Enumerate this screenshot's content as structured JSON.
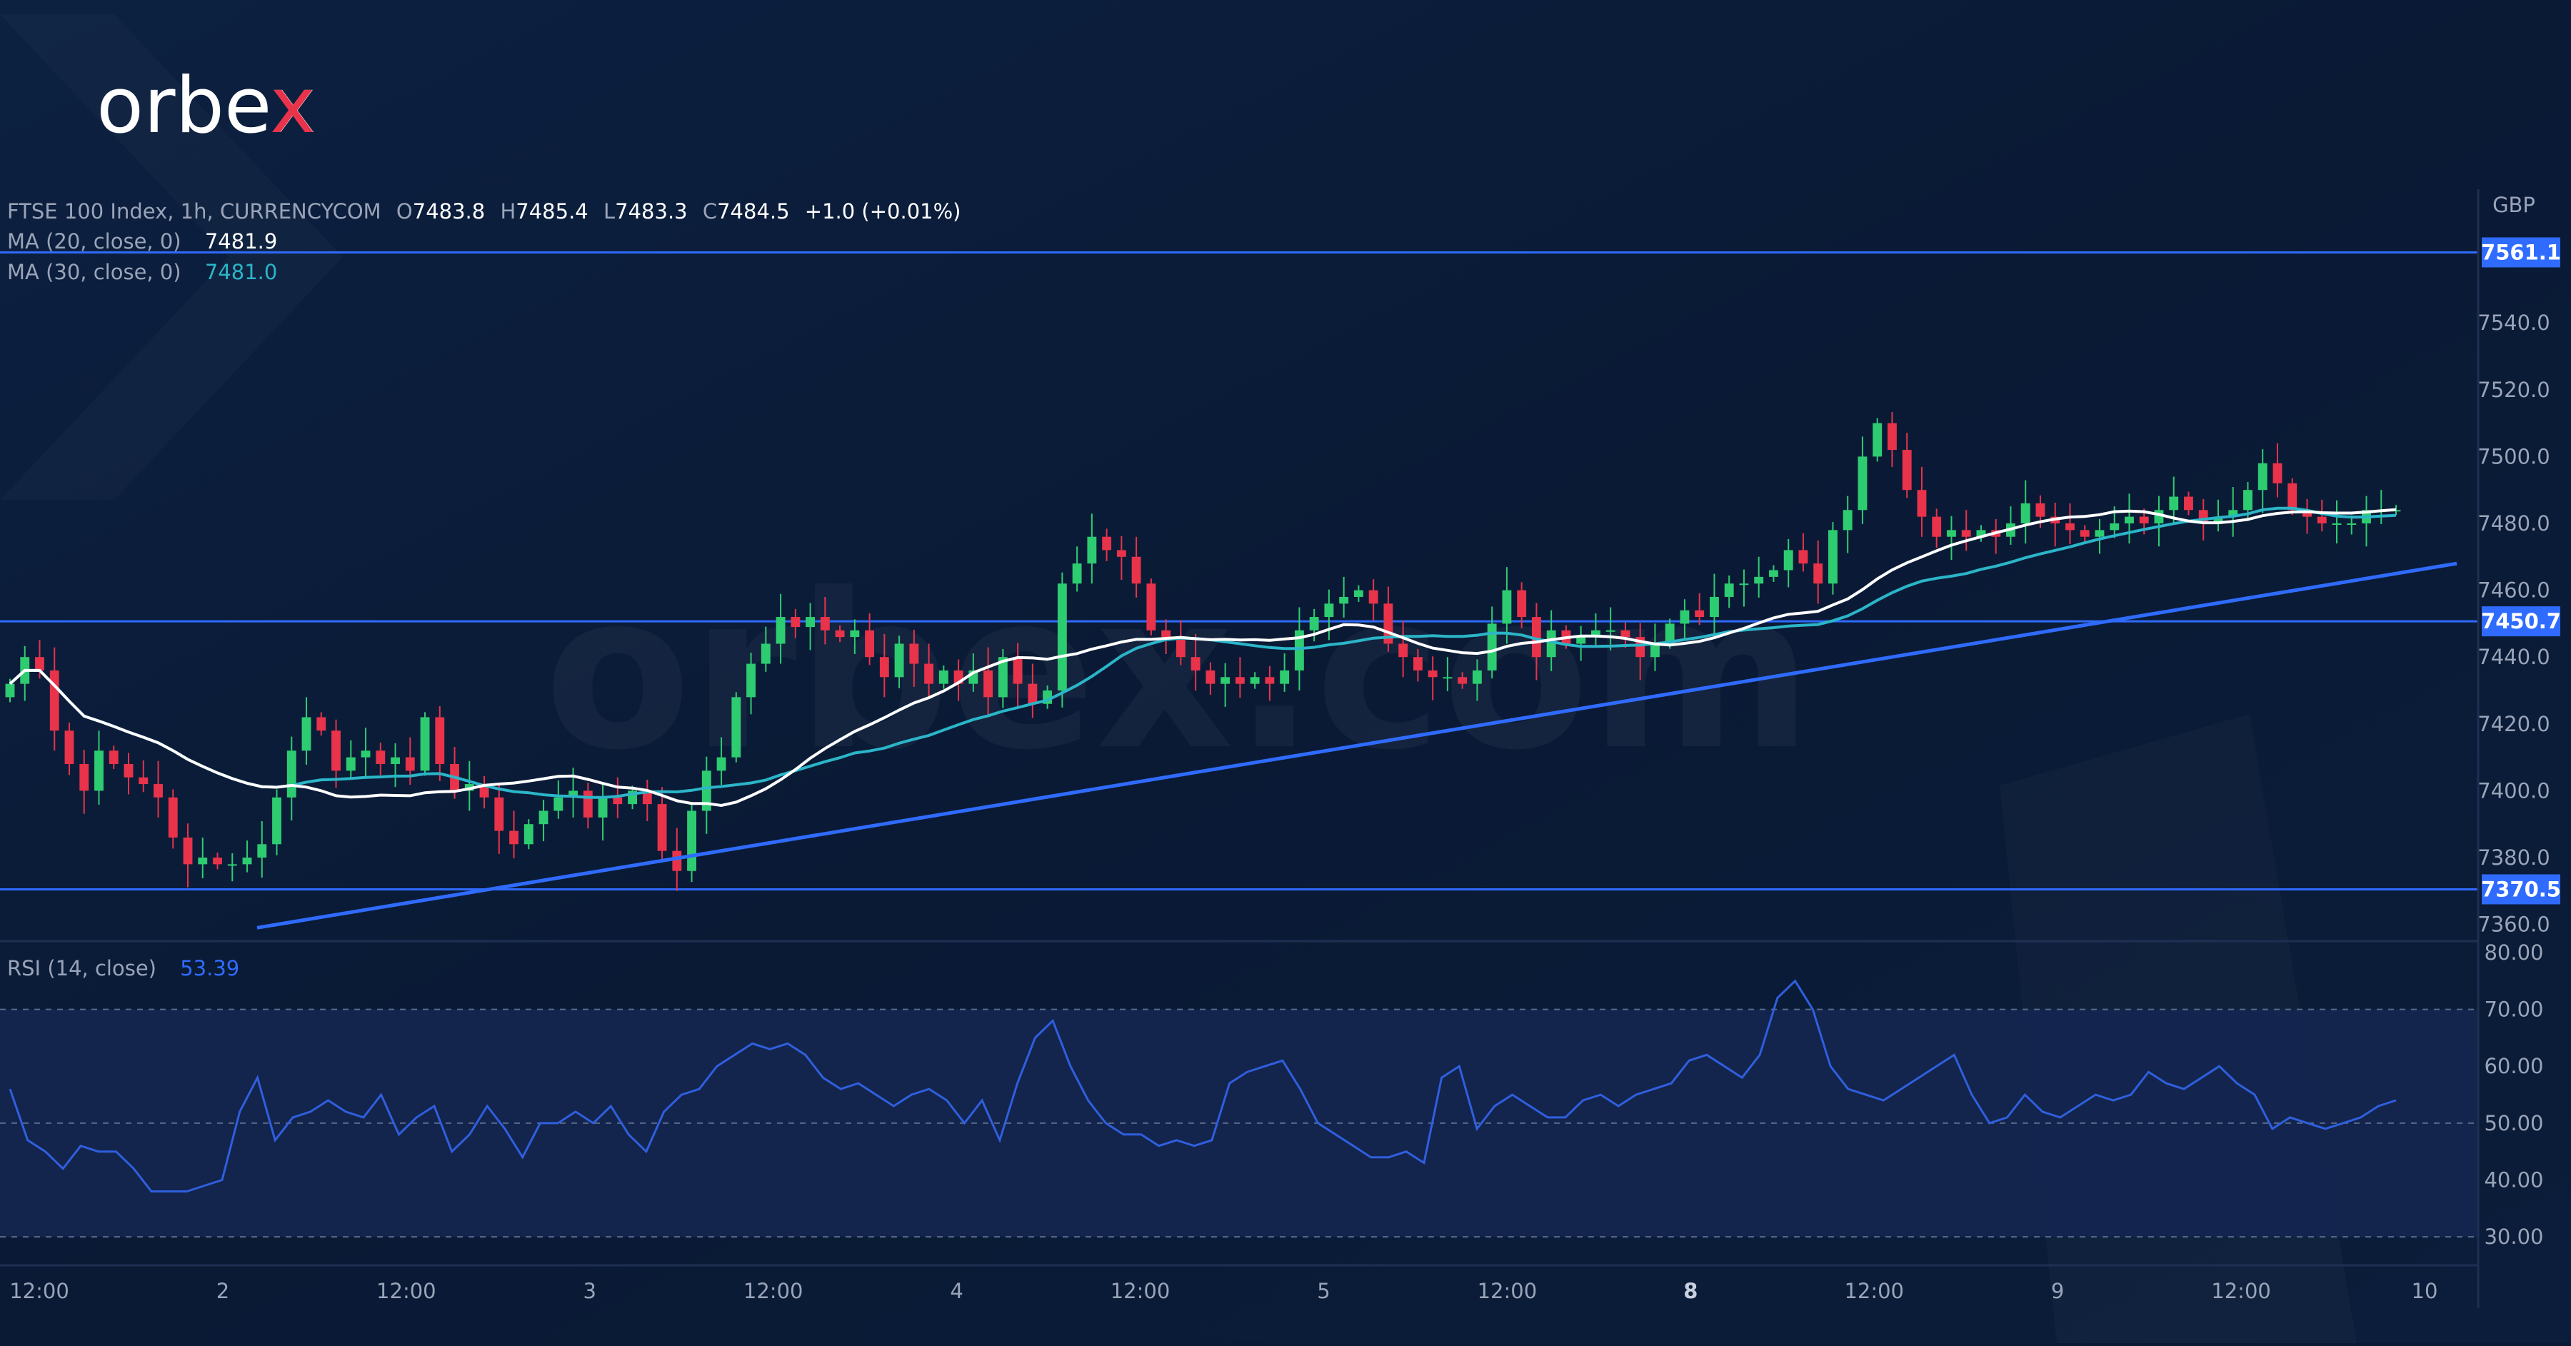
{
  "brand": {
    "logo_text": "orbex",
    "watermark_text": "orbex.com"
  },
  "colors": {
    "background": "#0a1a35",
    "up_candle": "#2ecc71",
    "down_candle": "#e8334a",
    "ma20": "#ffffff",
    "ma30": "#2bb5c8",
    "level_line": "#2f6bff",
    "rsi_line": "#2f5fdd",
    "rsi_band": "#142650",
    "price_label_bg": "#2f6bff",
    "logo_accent": "#e8334a"
  },
  "header": {
    "symbol": "FTSE 100 Index, 1h, CURRENCYCOM",
    "o_label": "O",
    "o_value": "7483.8",
    "h_label": "H",
    "h_value": "7485.4",
    "l_label": "L",
    "l_value": "7483.3",
    "c_label": "C",
    "c_value": "7484.5",
    "change": "+1.0 (+0.01%)",
    "ma20_label": "MA (20, close, 0)",
    "ma20_value": "7481.9",
    "ma30_label": "MA (30, close, 0)",
    "ma30_value": "7481.0",
    "currency": "GBP"
  },
  "rsi": {
    "label": "RSI (14, close)",
    "value": "53.39"
  },
  "chart_data": [
    {
      "type": "candlestick",
      "title": "FTSE 100 Index, 1h, CURRENCYCOM",
      "currency": "GBP",
      "ylim": [
        7355,
        7580
      ],
      "y_ticks": [
        "7360.0",
        "7380.0",
        "7400.0",
        "7420.0",
        "7440.0",
        "7460.0",
        "7480.0",
        "7500.0",
        "7520.0",
        "7540.0"
      ],
      "x_tick_labels": [
        "12:00",
        "2",
        "12:00",
        "3",
        "12:00",
        "4",
        "12:00",
        "5",
        "12:00",
        "8",
        "12:00",
        "9",
        "12:00",
        "10"
      ],
      "x_tick_bold": [
        false,
        false,
        false,
        false,
        false,
        false,
        false,
        false,
        false,
        true,
        false,
        false,
        false,
        false
      ],
      "horizontal_levels": [
        {
          "value": 7561.1,
          "label": "7561.1"
        },
        {
          "value": 7450.7,
          "label": "7450.7"
        },
        {
          "value": 7370.5,
          "label": "7370.5"
        }
      ],
      "trendline": {
        "start": [
          0,
          7359
        ],
        "end": [
          1,
          7468
        ]
      },
      "closes": [
        7432,
        7440,
        7436,
        7418,
        7408,
        7400,
        7412,
        7408,
        7404,
        7402,
        7398,
        7386,
        7378,
        7380,
        7378,
        7378,
        7380,
        7384,
        7398,
        7412,
        7422,
        7418,
        7406,
        7410,
        7412,
        7408,
        7410,
        7406,
        7422,
        7408,
        7400,
        7402,
        7398,
        7388,
        7384,
        7390,
        7394,
        7398,
        7400,
        7392,
        7398,
        7396,
        7400,
        7396,
        7382,
        7376,
        7394,
        7406,
        7410,
        7428,
        7438,
        7444,
        7452,
        7449,
        7452,
        7448,
        7446,
        7448,
        7440,
        7434,
        7444,
        7438,
        7432,
        7436,
        7432,
        7436,
        7428,
        7440,
        7432,
        7426,
        7430,
        7462,
        7468,
        7476,
        7472,
        7470,
        7462,
        7448,
        7446,
        7440,
        7436,
        7432,
        7434,
        7432,
        7434,
        7432,
        7436,
        7448,
        7452,
        7456,
        7458,
        7460,
        7456,
        7444,
        7440,
        7436,
        7434,
        7434,
        7432,
        7436,
        7450,
        7460,
        7452,
        7440,
        7448,
        7444,
        7446,
        7448,
        7448,
        7446,
        7440,
        7444,
        7450,
        7454,
        7452,
        7458,
        7462,
        7462,
        7464,
        7466,
        7472,
        7468,
        7462,
        7478,
        7484,
        7500,
        7510,
        7502,
        7490,
        7482,
        7476,
        7478,
        7476,
        7478,
        7476,
        7480,
        7486,
        7482,
        7480,
        7478,
        7476,
        7478,
        7480,
        7482,
        7480,
        7484,
        7488,
        7484,
        7480,
        7482,
        7484,
        7490,
        7498,
        7492,
        7484,
        7482,
        7480,
        7480,
        7480,
        7484,
        7484,
        7484
      ],
      "ma20_last": 7481.9,
      "ma30_last": 7481.0
    },
    {
      "type": "line",
      "title": "RSI (14, close)",
      "ylim": [
        25,
        82
      ],
      "y_ticks": [
        "30.00",
        "40.00",
        "50.00",
        "60.00",
        "70.00",
        "80.00"
      ],
      "band": [
        30,
        70
      ],
      "values": [
        56,
        47,
        45,
        42,
        46,
        45,
        45,
        42,
        38,
        38,
        38,
        39,
        40,
        52,
        58,
        47,
        51,
        52,
        54,
        52,
        51,
        55,
        48,
        51,
        53,
        45,
        48,
        53,
        49,
        44,
        50,
        50,
        52,
        50,
        53,
        48,
        45,
        52,
        55,
        56,
        60,
        62,
        64,
        63,
        64,
        62,
        58,
        56,
        57,
        55,
        53,
        55,
        56,
        54,
        50,
        54,
        47,
        57,
        65,
        68,
        60,
        54,
        50,
        48,
        48,
        46,
        47,
        46,
        47,
        57,
        59,
        60,
        61,
        56,
        50,
        48,
        46,
        44,
        44,
        45,
        43,
        58,
        60,
        49,
        53,
        55,
        53,
        51,
        51,
        54,
        55,
        53,
        55,
        56,
        57,
        61,
        62,
        60,
        58,
        62,
        72,
        75,
        70,
        60,
        56,
        55,
        54,
        56,
        58,
        60,
        62,
        55,
        50,
        51,
        55,
        52,
        51,
        53,
        55,
        54,
        55,
        59,
        57,
        56,
        58,
        60,
        57,
        55,
        49,
        51,
        50,
        49,
        50,
        51,
        53,
        54
      ],
      "last_value": 53.39
    }
  ]
}
